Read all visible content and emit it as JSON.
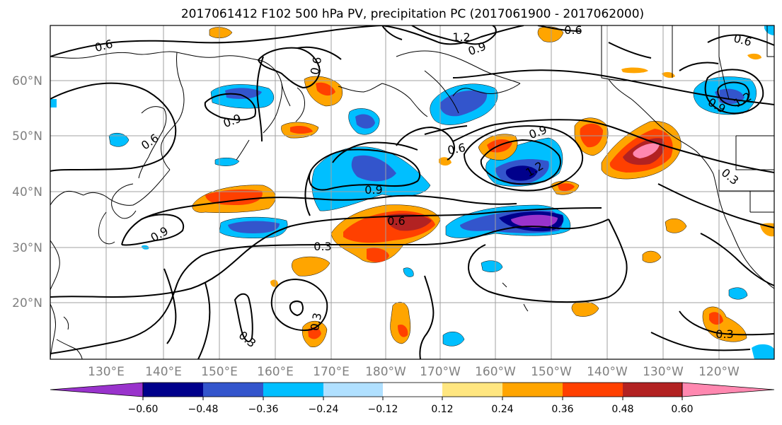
{
  "title": "2017061412 F102 500 hPa PV, precipitation PC (2017061900 - 2017062000)",
  "lat_labels": [
    "60°N",
    "50°N",
    "40°N",
    "30°N",
    "20°N"
  ],
  "lon_labels": [
    "130°E",
    "140°E",
    "150°E",
    "160°E",
    "170°E",
    "180°W",
    "170°W",
    "160°W",
    "150°W",
    "140°W",
    "130°W",
    "120°W"
  ],
  "colorbar": {
    "ticks": [
      "−0.60",
      "−0.48",
      "−0.36",
      "−0.24",
      "−0.12",
      "0.12",
      "0.24",
      "0.36",
      "0.48",
      "0.60"
    ],
    "colors": [
      "#9933cc",
      "#00008b",
      "#3355cc",
      "#00bfff",
      "#b0e0ff",
      "#ffffff",
      "#ffe680",
      "#ffa500",
      "#ff4000",
      "#b22222",
      "#ff88b0"
    ]
  },
  "contour_labels": [
    "0.6",
    "0.9",
    "0.6",
    "0.6",
    "0.9",
    "1.2",
    "0.9",
    "0.6",
    "0.9",
    "0.6",
    "0.3",
    "0.9",
    "1.2",
    "0.9",
    "0.3",
    "0.3",
    "0.3",
    "0.3",
    "0.6",
    "1.2",
    "0.9"
  ]
}
